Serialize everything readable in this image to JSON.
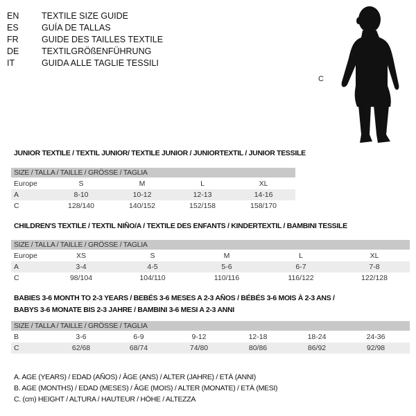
{
  "languages": [
    {
      "code": "EN",
      "text": "TEXTILE SIZE GUIDE"
    },
    {
      "code": "ES",
      "text": "GUÍA DE TALLAS"
    },
    {
      "code": "FR",
      "text": "GUIDE DES TAILLES TEXTILE"
    },
    {
      "code": "DE",
      "text": "TEXTILGRÖßENFÜHRUNG"
    },
    {
      "code": "IT",
      "text": "GUIDA ALLE TAGLIE TESSILI"
    }
  ],
  "figure": {
    "label": "C"
  },
  "size_header": "SIZE / TALLA / TAILLE / GRÖSSE / TAGLIA",
  "junior": {
    "title": "JUNIOR TEXTILE / TEXTIL JUNIOR/ TEXTILE JUNIOR / JUNIORTEXTIL / JUNIOR TESSILE",
    "rows": [
      [
        "Europe",
        "S",
        "M",
        "L",
        "XL"
      ],
      [
        "A",
        "8-10",
        "10-12",
        "12-13",
        "14-16"
      ],
      [
        "C",
        "128/140",
        "140/152",
        "152/158",
        "158/170"
      ]
    ]
  },
  "children": {
    "title": "CHILDREN'S TEXTILE / TEXTIL NIÑO/A / TEXTILE DES ENFANTS / KINDERTEXTIL / BAMBINI TESSILE",
    "rows": [
      [
        "Europe",
        "XS",
        "S",
        "M",
        "L",
        "XL"
      ],
      [
        "A",
        "3-4",
        "4-5",
        "5-6",
        "6-7",
        "7-8"
      ],
      [
        "C",
        "98/104",
        "104/110",
        "110/116",
        "116/122",
        "122/128"
      ]
    ]
  },
  "babies": {
    "title_line1": "BABIES 3-6 MONTH TO 2-3 YEARS / BEBÉS 3-6 MESES A 2-3 AÑOS / BÉBÉS 3-6 MOIS À 2-3 ANS /",
    "title_line2": "BABYS 3-6 MONATE BIS 2-3 JAHRE / BAMBINI 3-6 MESI A 2-3 ANNI",
    "rows": [
      [
        "B",
        "3-6",
        "6-9",
        "9-12",
        "12-18",
        "18-24",
        "24-36"
      ],
      [
        "C",
        "62/68",
        "68/74",
        "74/80",
        "80/86",
        "86/92",
        "92/98"
      ]
    ]
  },
  "legend": [
    "A. AGE (YEARS) / EDAD (AÑOS) / ÂGE (ANS) / ALTER (JAHRE) / ETÀ (ANNI)",
    "B. AGE (MONTHS) / EDAD (MESES) / ÂGE (MOIS) / ALTER (MONATE) / ETÀ (MESI)",
    "C. (cm) HEIGHT / ALTURA / HAUTEUR / HÖHE / ALTEZZA"
  ]
}
